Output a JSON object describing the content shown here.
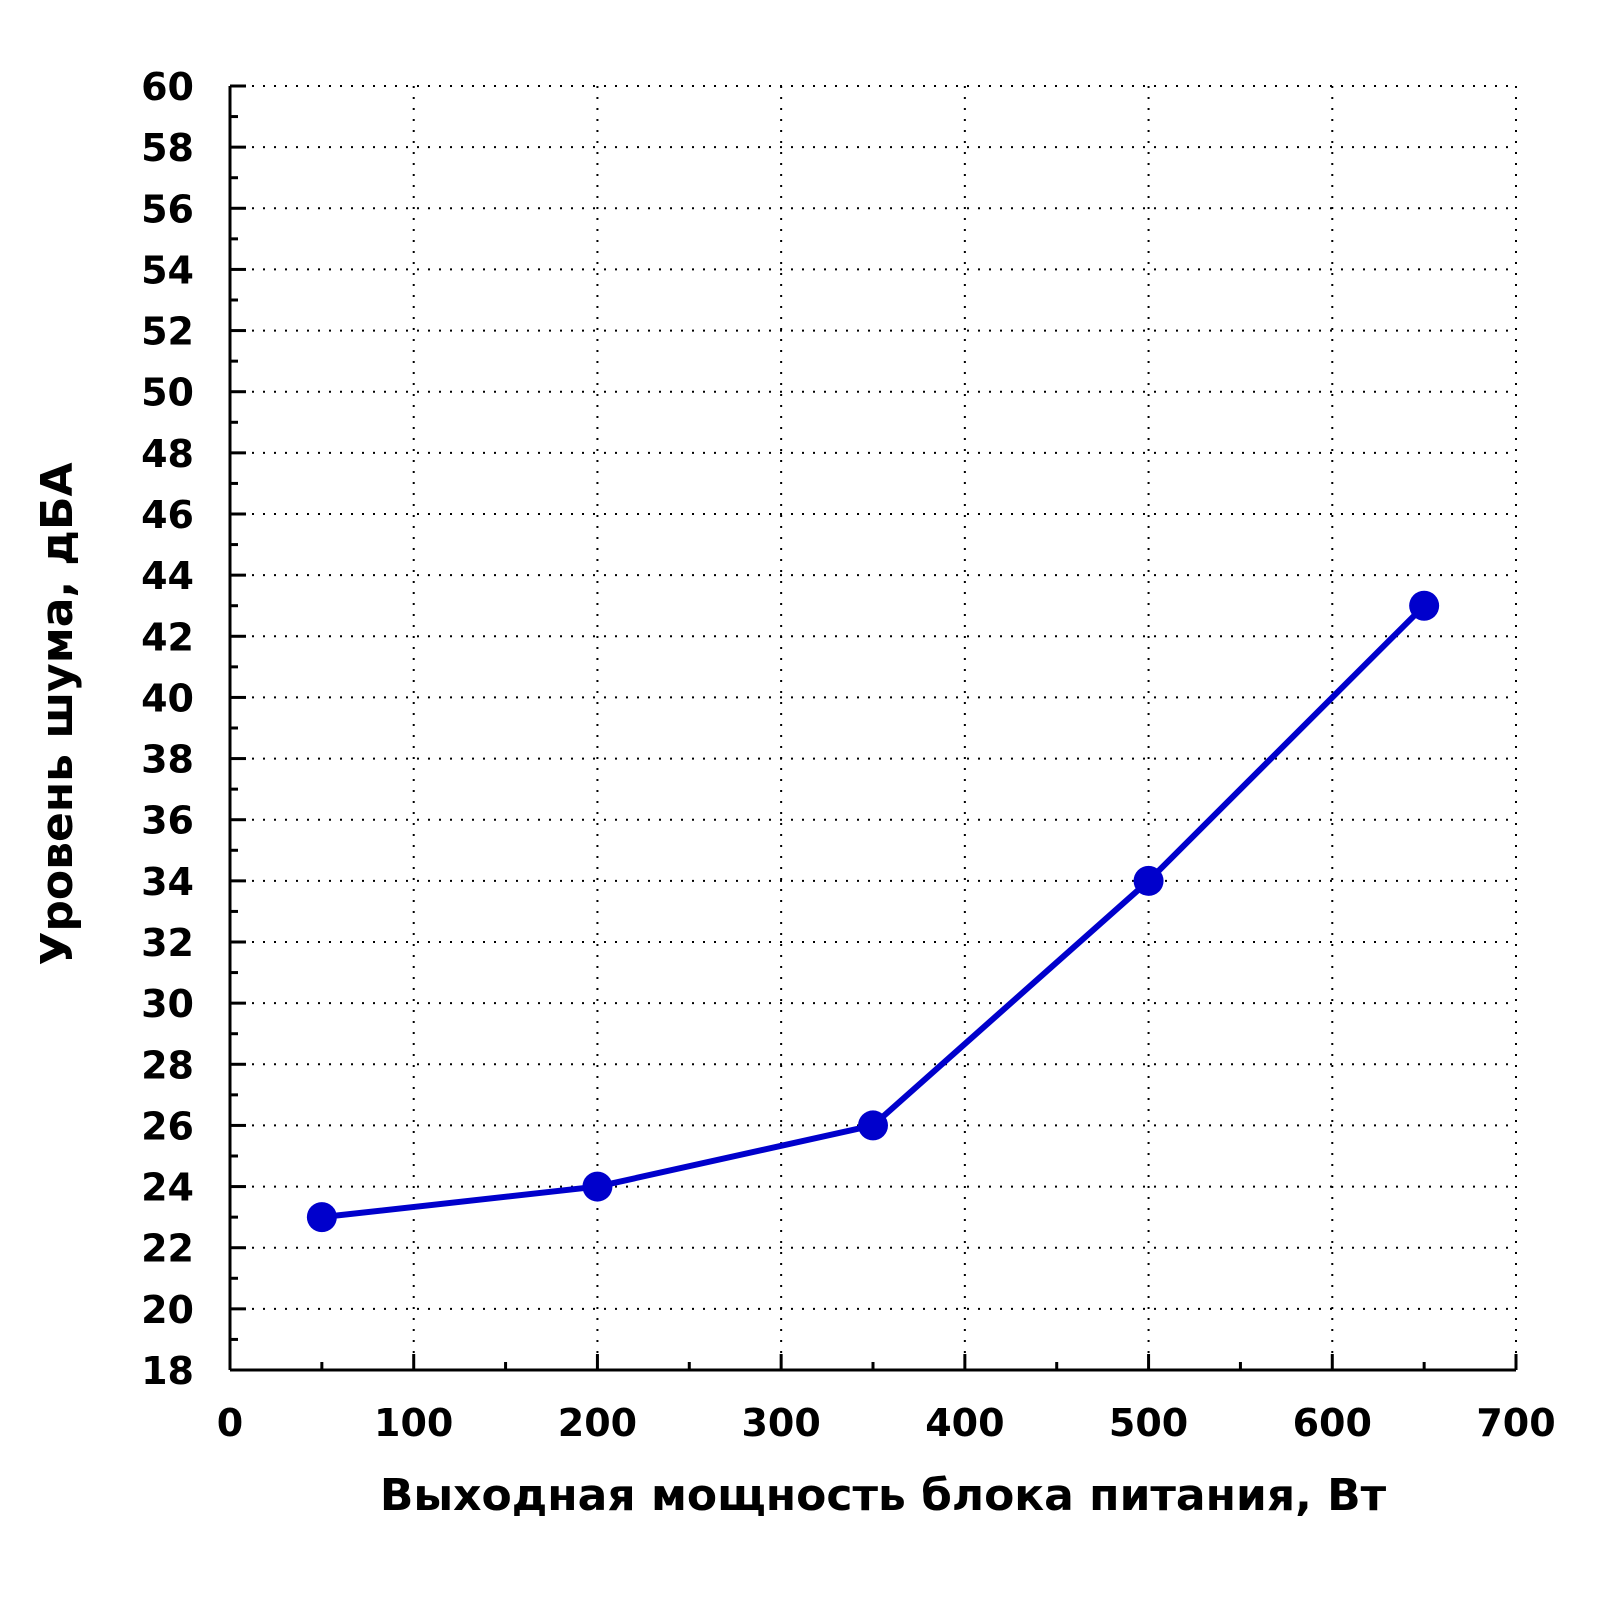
{
  "chart_data": {
    "type": "line",
    "xlabel": "Выходная мощность блока питания, Вт",
    "ylabel": "Уровень шума, дБА",
    "xlim": [
      0,
      700
    ],
    "ylim": [
      18,
      60
    ],
    "x_ticks": [
      0,
      100,
      200,
      300,
      400,
      500,
      600,
      700
    ],
    "x_tick_labels": [
      "0",
      "100",
      "200",
      "300",
      "400",
      "500",
      "600",
      "700"
    ],
    "y_ticks": [
      18,
      20,
      22,
      24,
      26,
      28,
      30,
      32,
      34,
      36,
      38,
      40,
      42,
      44,
      46,
      48,
      50,
      52,
      54,
      56,
      58,
      60
    ],
    "y_tick_labels": [
      "18",
      "20",
      "22",
      "24",
      "26",
      "28",
      "30",
      "32",
      "34",
      "36",
      "38",
      "40",
      "42",
      "44",
      "46",
      "48",
      "50",
      "52",
      "54",
      "56",
      "58",
      "60"
    ],
    "grid": true,
    "legend": "none",
    "series": [
      {
        "color": "#0000cc",
        "marker": "circle",
        "x": [
          50,
          200,
          350,
          500,
          650
        ],
        "y": [
          23,
          24,
          26,
          34,
          43
        ]
      }
    ]
  }
}
